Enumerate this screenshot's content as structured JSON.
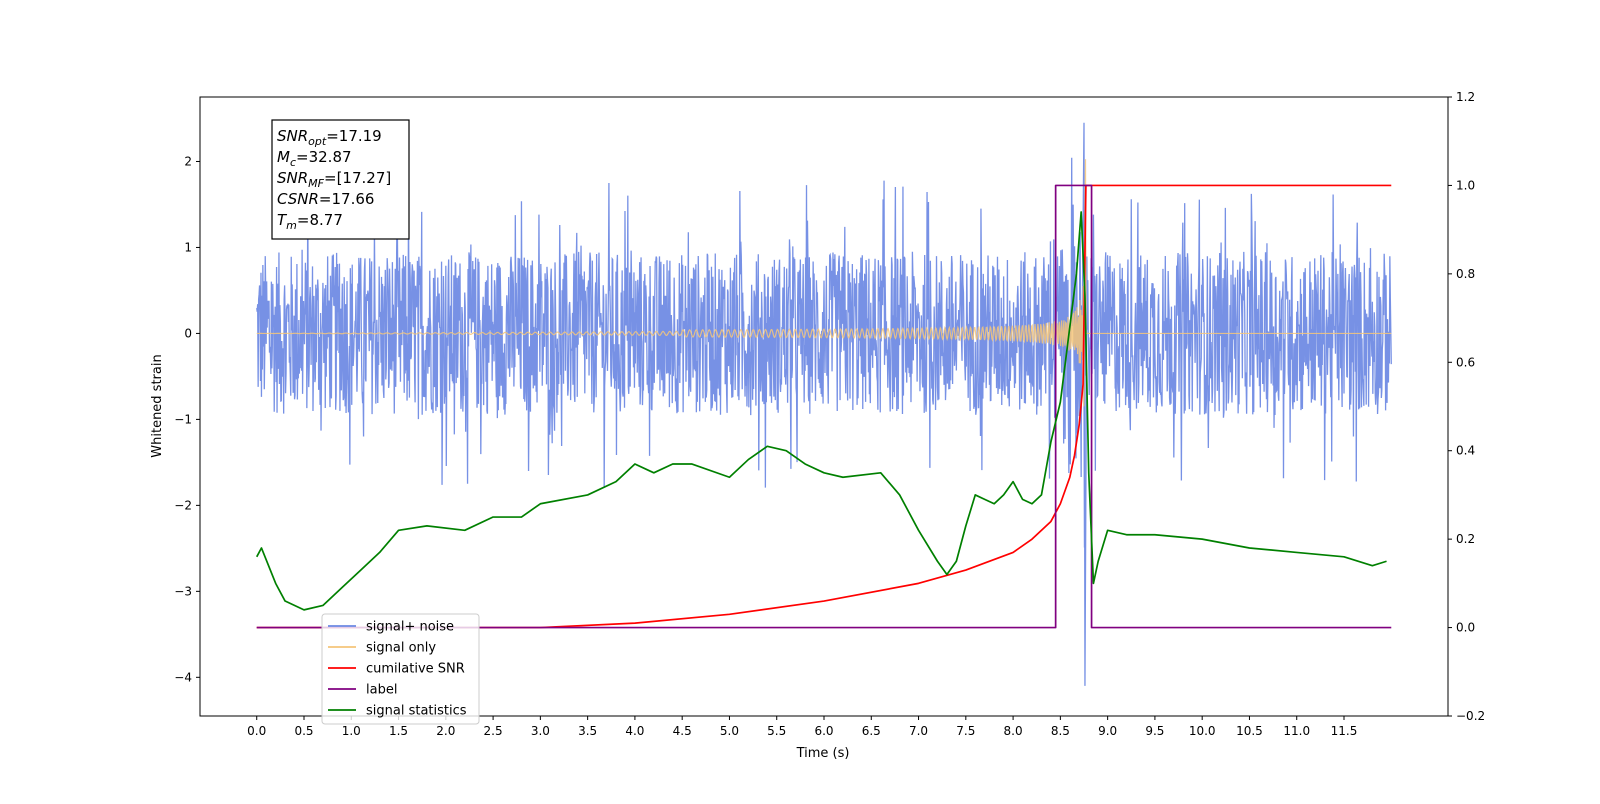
{
  "chart_data": {
    "type": "line",
    "xlabel": "Time (s)",
    "ylabel": "Whitened strain",
    "xlim": [
      -0.6,
      12.6
    ],
    "ylim_left": [
      -4.45,
      2.75
    ],
    "ylim_right": [
      -0.2,
      1.2
    ],
    "x_ticks": [
      0.0,
      0.5,
      1.0,
      1.5,
      2.0,
      2.5,
      3.0,
      3.5,
      4.0,
      4.5,
      5.0,
      5.5,
      6.0,
      6.5,
      7.0,
      7.5,
      8.0,
      8.5,
      9.0,
      9.5,
      10.0,
      10.5,
      11.0,
      11.5
    ],
    "x_tick_labels": [
      "0.0",
      "0.5",
      "1.0",
      "1.5",
      "2.0",
      "2.5",
      "3.0",
      "3.5",
      "4.0",
      "4.5",
      "5.0",
      "5.5",
      "6.0",
      "6.5",
      "7.0",
      "7.5",
      "8.0",
      "8.5",
      "9.0",
      "9.5",
      "10.0",
      "10.5",
      "11.0",
      "11.5"
    ],
    "y_left_ticks": [
      -4,
      -3,
      -2,
      -1,
      0,
      1,
      2
    ],
    "y_left_tick_labels": [
      "−4",
      "−3",
      "−2",
      "−1",
      "0",
      "1",
      "2"
    ],
    "y_right_ticks": [
      -0.2,
      0.0,
      0.2,
      0.4,
      0.6,
      0.8,
      1.0,
      1.2
    ],
    "y_right_tick_labels": [
      "−0.2",
      "0.0",
      "0.2",
      "0.4",
      "0.6",
      "0.8",
      "1.0",
      "1.2"
    ],
    "annotation": {
      "lines": [
        {
          "main": "SNR",
          "sub": "opt",
          "value": "=17.19"
        },
        {
          "main": "M",
          "sub": "c",
          "value": "=32.87"
        },
        {
          "main": "SNR",
          "sub": "MF",
          "value": "=[17.27]"
        },
        {
          "main": "CSNR",
          "sub": "",
          "value": "=17.66"
        },
        {
          "main": "T",
          "sub": "m",
          "value": "=8.77"
        }
      ]
    },
    "legend": {
      "placement": "lower-left",
      "entries": [
        {
          "label": "signal+ noise",
          "color": "#6b88e3"
        },
        {
          "label": "signal only",
          "color": "#f5c57a"
        },
        {
          "label": "cumilative SNR",
          "color": "#ff0000"
        },
        {
          "label": "label",
          "color": "#800080"
        },
        {
          "label": "signal statistics",
          "color": "#008000"
        }
      ]
    },
    "series": [
      {
        "name": "signal+ noise",
        "axis": "left",
        "color": "#6b88e3",
        "x_range": [
          0.0,
          12.0
        ],
        "noise_band": [
          -1.0,
          1.0
        ],
        "visible_extremes": {
          "max": 2.45,
          "min": -4.1,
          "at_x": 8.75
        }
      },
      {
        "name": "signal only",
        "axis": "left",
        "color": "#f5c57a",
        "x_range": [
          0.0,
          12.0
        ],
        "chirp_peak_x": 8.77,
        "chirp_peak_amplitude": 2.15
      },
      {
        "name": "cumilative SNR",
        "axis": "right",
        "color": "#ff0000",
        "x": [
          0.0,
          3.0,
          4.0,
          5.0,
          6.0,
          7.0,
          7.5,
          8.0,
          8.2,
          8.4,
          8.5,
          8.6,
          8.65,
          8.7,
          8.74,
          8.77,
          12.0
        ],
        "y": [
          0.0,
          0.0,
          0.01,
          0.03,
          0.06,
          0.1,
          0.13,
          0.17,
          0.2,
          0.24,
          0.28,
          0.34,
          0.39,
          0.46,
          0.55,
          1.0,
          1.0
        ]
      },
      {
        "name": "label",
        "axis": "right",
        "color": "#800080",
        "x": [
          0.0,
          8.45,
          8.45,
          8.83,
          8.83,
          12.0
        ],
        "y": [
          0.0,
          0.0,
          1.0,
          1.0,
          0.0,
          0.0
        ]
      },
      {
        "name": "signal statistics",
        "axis": "right",
        "color": "#008000",
        "x": [
          0.0,
          0.05,
          0.2,
          0.3,
          0.5,
          0.7,
          0.9,
          1.1,
          1.3,
          1.5,
          1.8,
          2.2,
          2.5,
          2.8,
          3.0,
          3.5,
          3.8,
          4.0,
          4.2,
          4.4,
          4.6,
          5.0,
          5.2,
          5.4,
          5.6,
          5.8,
          6.0,
          6.2,
          6.6,
          6.8,
          7.0,
          7.2,
          7.3,
          7.4,
          7.5,
          7.6,
          7.7,
          7.8,
          7.9,
          8.0,
          8.1,
          8.2,
          8.3,
          8.4,
          8.5,
          8.6,
          8.67,
          8.72,
          8.76,
          8.8,
          8.85,
          8.9,
          9.0,
          9.2,
          9.5,
          10.0,
          10.5,
          11.0,
          11.5,
          11.8,
          11.95
        ],
        "y": [
          0.16,
          0.18,
          0.1,
          0.06,
          0.04,
          0.05,
          0.09,
          0.13,
          0.17,
          0.22,
          0.23,
          0.22,
          0.25,
          0.25,
          0.28,
          0.3,
          0.33,
          0.37,
          0.35,
          0.37,
          0.37,
          0.34,
          0.38,
          0.41,
          0.4,
          0.37,
          0.35,
          0.34,
          0.35,
          0.3,
          0.22,
          0.15,
          0.12,
          0.15,
          0.23,
          0.3,
          0.29,
          0.28,
          0.3,
          0.33,
          0.29,
          0.28,
          0.3,
          0.42,
          0.51,
          0.68,
          0.8,
          0.94,
          0.75,
          0.35,
          0.1,
          0.15,
          0.22,
          0.21,
          0.21,
          0.2,
          0.18,
          0.17,
          0.16,
          0.14,
          0.15
        ]
      }
    ]
  }
}
